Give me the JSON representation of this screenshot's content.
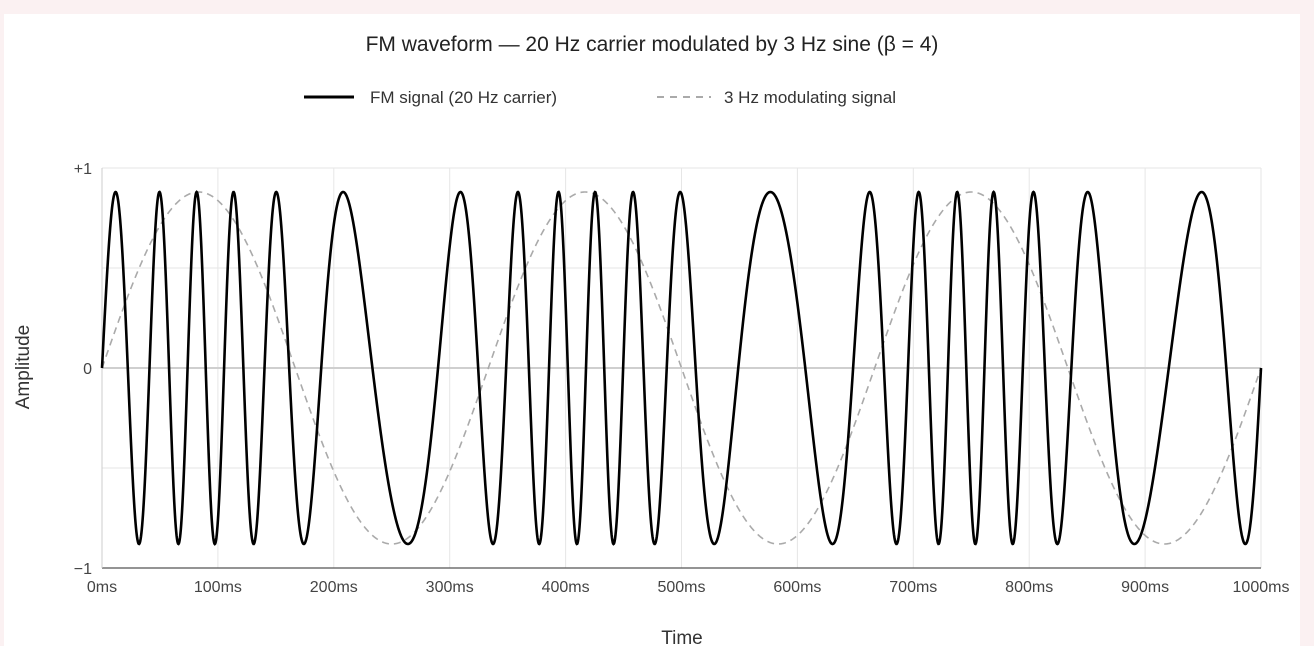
{
  "chart_data": {
    "type": "line",
    "title": "FM waveform — 20 Hz carrier modulated by 3 Hz sine (β = 4)",
    "xlabel": "Time",
    "ylabel": "Amplitude",
    "xlim": [
      0,
      1000
    ],
    "ylim": [
      -1,
      1
    ],
    "x_unit": "ms",
    "x_ticks": [
      "0ms",
      "100ms",
      "200ms",
      "300ms",
      "400ms",
      "500ms",
      "600ms",
      "700ms",
      "800ms",
      "900ms",
      "1000ms"
    ],
    "y_ticks": [
      "+1",
      "0",
      "−1"
    ],
    "grid": true,
    "legend_position": "top-center",
    "signal_amplitude": 0.88,
    "series": [
      {
        "name": "FM signal (20 Hz carrier)",
        "style": "solid",
        "color": "#000000",
        "carrier_hz": 20,
        "modulation_hz": 3,
        "modulation_index": 4
      },
      {
        "name": "3 Hz modulating signal",
        "style": "dashed",
        "color": "#aaaaaa",
        "frequency_hz": 3
      }
    ]
  }
}
